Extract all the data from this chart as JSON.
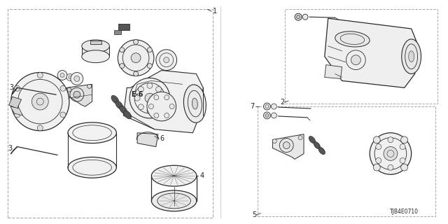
{
  "background_color": "#ffffff",
  "border_color": "#aaaaaa",
  "line_color": "#2a2a2a",
  "text_color": "#222222",
  "diagram_code": "TJB4E0710",
  "fs": 7
}
